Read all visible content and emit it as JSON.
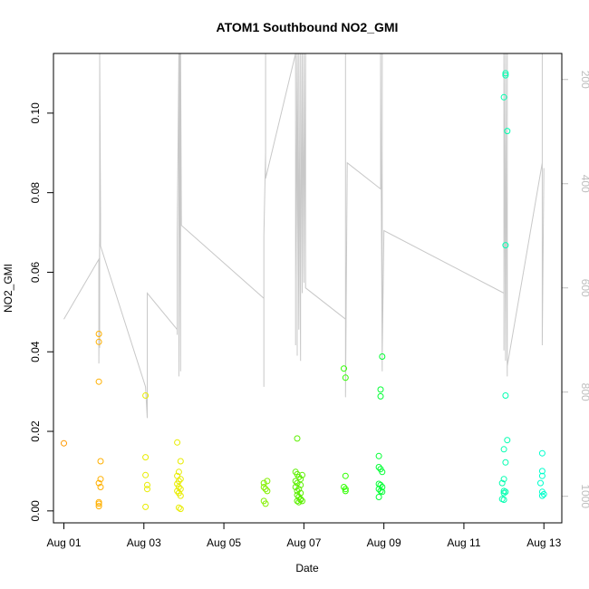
{
  "chart_data": {
    "type": "scatter",
    "title": "ATOM1 Southbound NO2_GMI",
    "xlabel": "Date",
    "ylabel": "NO2_GMI",
    "x_ticks": [
      "Aug 01",
      "Aug 03",
      "Aug 05",
      "Aug 07",
      "Aug 09",
      "Aug 11",
      "Aug 13"
    ],
    "y_ticks": [
      "0.00",
      "0.02",
      "0.04",
      "0.06",
      "0.08",
      "0.10"
    ],
    "y2_ticks": [
      "200",
      "400",
      "600",
      "800",
      "1000"
    ],
    "xlim": [
      "2016-07-31T17:45",
      "2016-08-13T10:45"
    ],
    "ylim": [
      -0.003,
      0.115
    ],
    "y2lim": [
      1051,
      150
    ],
    "y2_reversed": true,
    "grid": false,
    "legend": "none",
    "colors": {
      "pressure_line": "#c8c8c8",
      "right_axis": "#bebebe",
      "day1": "#ff9900",
      "day2": "#ffb000",
      "day3": "#e8ec00",
      "day4": "#bde600",
      "day5": "#a0ff00",
      "day6": "#84f000",
      "day7": "#5cf000",
      "day8": "#30ff00",
      "day9": "#00ff33",
      "day10": "#00ff99",
      "day11": "#00ffb0",
      "day12": "#00ffcc"
    },
    "series": [
      {
        "color_key": "day1",
        "points": [
          [
            "2016-08-01T00:00",
            0.017
          ]
        ]
      },
      {
        "color_key": "day2",
        "points": [
          [
            "2016-08-01T21:00",
            0.0445
          ],
          [
            "2016-08-01T21:00",
            0.0425
          ],
          [
            "2016-08-01T21:00",
            0.0325
          ],
          [
            "2016-08-01T22:00",
            0.0125
          ],
          [
            "2016-08-01T22:00",
            0.008
          ],
          [
            "2016-08-01T21:00",
            0.007
          ],
          [
            "2016-08-01T22:00",
            0.006
          ],
          [
            "2016-08-01T21:00",
            0.0022
          ],
          [
            "2016-08-01T21:00",
            0.0018
          ],
          [
            "2016-08-01T21:00",
            0.0012
          ]
        ]
      },
      {
        "color_key": "day3",
        "points": [
          [
            "2016-08-03T01:00",
            0.029
          ],
          [
            "2016-08-03T01:00",
            0.0135
          ],
          [
            "2016-08-03T01:00",
            0.009
          ],
          [
            "2016-08-03T02:00",
            0.0065
          ],
          [
            "2016-08-03T02:00",
            0.0055
          ],
          [
            "2016-08-03T01:00",
            0.001
          ],
          [
            "2016-08-03T20:00",
            0.0172
          ],
          [
            "2016-08-03T22:00",
            0.0125
          ],
          [
            "2016-08-03T21:00",
            0.0098
          ],
          [
            "2016-08-03T20:00",
            0.0088
          ],
          [
            "2016-08-03T22:00",
            0.008
          ],
          [
            "2016-08-03T21:00",
            0.0075
          ],
          [
            "2016-08-03T20:00",
            0.0068
          ],
          [
            "2016-08-03T21:00",
            0.006
          ],
          [
            "2016-08-03T22:00",
            0.0055
          ],
          [
            "2016-08-03T20:00",
            0.005
          ],
          [
            "2016-08-03T21:00",
            0.0045
          ],
          [
            "2016-08-03T22:00",
            0.0038
          ],
          [
            "2016-08-03T21:00",
            0.0008
          ],
          [
            "2016-08-03T22:00",
            0.0005
          ]
        ]
      },
      {
        "color_key": "day6",
        "points": [
          [
            "2016-08-06T00:00",
            0.007
          ],
          [
            "2016-08-06T02:00",
            0.0075
          ],
          [
            "2016-08-06T00:00",
            0.006
          ],
          [
            "2016-08-06T01:00",
            0.0055
          ],
          [
            "2016-08-06T02:00",
            0.005
          ],
          [
            "2016-08-06T00:00",
            0.0025
          ],
          [
            "2016-08-06T01:00",
            0.0018
          ]
        ]
      },
      {
        "color_key": "day7",
        "points": [
          [
            "2016-08-06T20:00",
            0.0182
          ],
          [
            "2016-08-06T19:00",
            0.0098
          ],
          [
            "2016-08-06T20:00",
            0.0092
          ],
          [
            "2016-08-06T21:00",
            0.0085
          ],
          [
            "2016-08-06T22:00",
            0.008
          ],
          [
            "2016-08-06T19:00",
            0.0075
          ],
          [
            "2016-08-06T20:00",
            0.007
          ],
          [
            "2016-08-06T22:00",
            0.0065
          ],
          [
            "2016-08-06T19:00",
            0.006
          ],
          [
            "2016-08-06T21:00",
            0.0055
          ],
          [
            "2016-08-06T20:00",
            0.005
          ],
          [
            "2016-08-06T22:00",
            0.0045
          ],
          [
            "2016-08-06T20:00",
            0.004
          ],
          [
            "2016-08-06T21:00",
            0.0035
          ],
          [
            "2016-08-06T22:00",
            0.003
          ],
          [
            "2016-08-06T20:00",
            0.0025
          ],
          [
            "2016-08-06T21:00",
            0.0022
          ],
          [
            "2016-08-06T22:00",
            0.0028
          ],
          [
            "2016-08-06T23:00",
            0.009
          ],
          [
            "2016-08-06T23:00",
            0.0025
          ]
        ]
      },
      {
        "color_key": "day8",
        "points": [
          [
            "2016-08-08T00:00",
            0.0358
          ],
          [
            "2016-08-08T01:00",
            0.0335
          ],
          [
            "2016-08-08T01:00",
            0.0088
          ],
          [
            "2016-08-08T00:00",
            0.006
          ],
          [
            "2016-08-08T01:00",
            0.0055
          ],
          [
            "2016-08-08T01:00",
            0.005
          ]
        ]
      },
      {
        "color_key": "day9",
        "points": [
          [
            "2016-08-08T23:00",
            0.0388
          ],
          [
            "2016-08-08T22:00",
            0.0305
          ],
          [
            "2016-08-08T22:00",
            0.0288
          ],
          [
            "2016-08-08T21:00",
            0.0138
          ],
          [
            "2016-08-08T21:00",
            0.011
          ],
          [
            "2016-08-08T22:00",
            0.0105
          ],
          [
            "2016-08-08T23:00",
            0.0098
          ],
          [
            "2016-08-08T21:00",
            0.0068
          ],
          [
            "2016-08-08T22:00",
            0.0065
          ],
          [
            "2016-08-08T23:00",
            0.006
          ],
          [
            "2016-08-08T21:00",
            0.0055
          ],
          [
            "2016-08-08T22:00",
            0.005
          ],
          [
            "2016-08-08T23:00",
            0.0048
          ],
          [
            "2016-08-08T21:00",
            0.0035
          ]
        ]
      },
      {
        "color_key": "day11",
        "points": [
          [
            "2016-08-12T01:00",
            0.11
          ],
          [
            "2016-08-12T01:00",
            0.1095
          ],
          [
            "2016-08-12T00:00",
            0.104
          ],
          [
            "2016-08-12T02:00",
            0.0955
          ],
          [
            "2016-08-12T01:00",
            0.0668
          ],
          [
            "2016-08-12T01:00",
            0.029
          ],
          [
            "2016-08-12T02:00",
            0.0178
          ],
          [
            "2016-08-12T00:00",
            0.0155
          ],
          [
            "2016-08-12T01:00",
            0.0122
          ],
          [
            "2016-08-12T00:00",
            0.008
          ],
          [
            "2016-08-11T23:00",
            0.007
          ],
          [
            "2016-08-12T00:00",
            0.005
          ],
          [
            "2016-08-12T01:00",
            0.0048
          ],
          [
            "2016-08-12T00:00",
            0.0045
          ],
          [
            "2016-08-11T23:00",
            0.003
          ],
          [
            "2016-08-12T00:00",
            0.0028
          ]
        ]
      },
      {
        "color_key": "day12",
        "points": [
          [
            "2016-08-12T23:00",
            0.0145
          ],
          [
            "2016-08-12T23:00",
            0.01
          ],
          [
            "2016-08-12T23:00",
            0.0088
          ],
          [
            "2016-08-12T22:00",
            0.007
          ],
          [
            "2016-08-12T23:00",
            0.0048
          ],
          [
            "2016-08-13T00:00",
            0.0042
          ],
          [
            "2016-08-12T23:00",
            0.0038
          ]
        ]
      }
    ],
    "pressure_line": [
      [
        "2016-08-01T00:00",
        660
      ],
      [
        "2016-08-01T21:00",
        545
      ],
      [
        "2016-08-01T21:00",
        745
      ],
      [
        "2016-08-01T21:30",
        490
      ],
      [
        "2016-08-01T21:30",
        715
      ],
      [
        "2016-08-01T21:30",
        150
      ],
      [
        "2016-08-01T22:00",
        465
      ],
      [
        "2016-08-01T22:00",
        520
      ],
      [
        "2016-08-03T01:00",
        790
      ],
      [
        "2016-08-03T02:00",
        850
      ],
      [
        "2016-08-03T02:00",
        610
      ],
      [
        "2016-08-03T20:00",
        680
      ],
      [
        "2016-08-03T20:00",
        560
      ],
      [
        "2016-08-03T20:00",
        690
      ],
      [
        "2016-08-03T20:00",
        500
      ],
      [
        "2016-08-03T21:00",
        150
      ],
      [
        "2016-08-03T21:00",
        770
      ],
      [
        "2016-08-03T21:30",
        150
      ],
      [
        "2016-08-03T22:00",
        760
      ],
      [
        "2016-08-03T22:00",
        150
      ],
      [
        "2016-08-03T22:30",
        480
      ],
      [
        "2016-08-06T00:00",
        620
      ],
      [
        "2016-08-06T00:00",
        790
      ],
      [
        "2016-08-06T00:00",
        500
      ],
      [
        "2016-08-06T01:00",
        340
      ],
      [
        "2016-08-06T01:00",
        150
      ],
      [
        "2016-08-06T01:00",
        390
      ],
      [
        "2016-08-06T19:00",
        150
      ],
      [
        "2016-08-06T19:00",
        710
      ],
      [
        "2016-08-06T19:00",
        590
      ],
      [
        "2016-08-06T20:00",
        150
      ],
      [
        "2016-08-06T20:00",
        730
      ],
      [
        "2016-08-06T20:00",
        150
      ],
      [
        "2016-08-06T21:00",
        680
      ],
      [
        "2016-08-06T21:00",
        150
      ],
      [
        "2016-08-06T22:00",
        740
      ],
      [
        "2016-08-06T22:00",
        150
      ],
      [
        "2016-08-06T23:00",
        610
      ],
      [
        "2016-08-06T23:00",
        150
      ],
      [
        "2016-08-07T00:00",
        590
      ],
      [
        "2016-08-07T00:00",
        150
      ],
      [
        "2016-08-07T00:00",
        580
      ],
      [
        "2016-08-07T01:00",
        150
      ],
      [
        "2016-08-07T01:00",
        600
      ],
      [
        "2016-08-08T01:00",
        660
      ],
      [
        "2016-08-08T01:00",
        150
      ],
      [
        "2016-08-08T01:00",
        810
      ],
      [
        "2016-08-08T02:00",
        360
      ],
      [
        "2016-08-08T22:00",
        410
      ],
      [
        "2016-08-08T22:00",
        150
      ],
      [
        "2016-08-08T23:00",
        760
      ],
      [
        "2016-08-08T23:00",
        150
      ],
      [
        "2016-08-08T23:00",
        730
      ],
      [
        "2016-08-09T00:00",
        490
      ],
      [
        "2016-08-12T00:00",
        610
      ],
      [
        "2016-08-12T00:00",
        150
      ],
      [
        "2016-08-12T00:00",
        720
      ],
      [
        "2016-08-12T00:00",
        150
      ],
      [
        "2016-08-12T01:00",
        740
      ],
      [
        "2016-08-12T01:00",
        150
      ],
      [
        "2016-08-12T02:00",
        770
      ],
      [
        "2016-08-12T02:00",
        150
      ],
      [
        "2016-08-12T02:00",
        750
      ],
      [
        "2016-08-12T23:00",
        360
      ],
      [
        "2016-08-12T23:00",
        150
      ],
      [
        "2016-08-12T23:00",
        710
      ],
      [
        "2016-08-13T00:00",
        370
      ]
    ]
  }
}
